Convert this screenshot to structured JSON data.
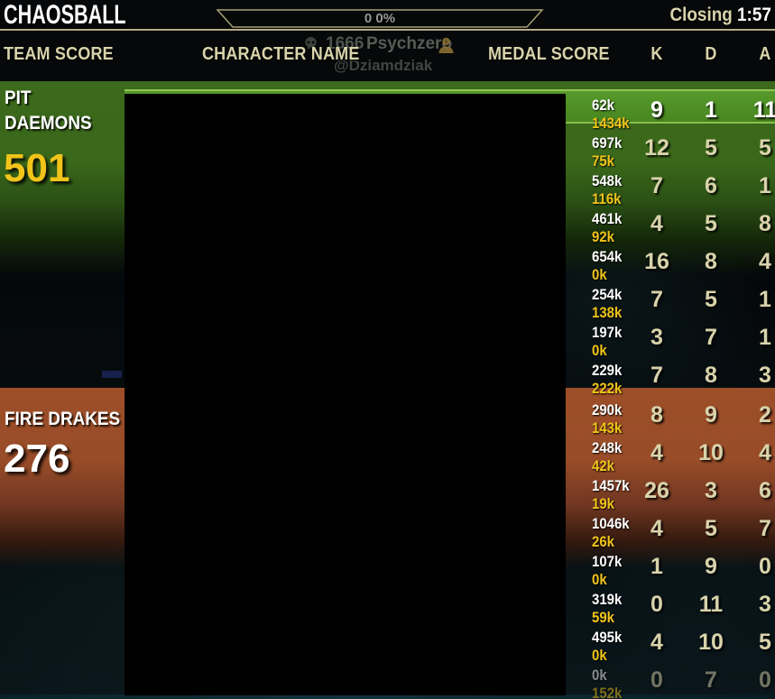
{
  "title_bar": {
    "game_mode": "CHAOSBALL",
    "closing_label": "Closing",
    "closing_time": "1:57",
    "capture_bar_text": "0 0%"
  },
  "background_overlay": {
    "score_value": "1666",
    "character_name": "Psychzero",
    "account_name": "@Dziamdziak"
  },
  "table_header": {
    "team_score": "TEAM SCORE",
    "character_name": "CHARACTER NAME",
    "medal_score": "MEDAL SCORE",
    "kills": "K",
    "deaths": "D",
    "assists": "A"
  },
  "icons": {
    "skull": "skull-icon",
    "rank": "player-rank-icon"
  },
  "colors": {
    "team1_green": "#3c691c",
    "team1_highlight": "#529426",
    "highlight_edge": "#92c553",
    "team2_orange": "#9c4f28",
    "medal_secondary_yellow": "#f0c419",
    "header_beige": "#d9d3ab",
    "team1_score_color": "#f0c419",
    "team2_score_color": "#ffffff"
  },
  "teams": [
    {
      "name": "PIT DAEMONS",
      "name_lines": [
        "PIT",
        "DAEMONS"
      ],
      "score": "501",
      "score_color": "#f0c419",
      "players": [
        {
          "medal_score": "62k",
          "medal_score_secondary": "1434k",
          "kills": "9",
          "deaths": "1",
          "assists": "11",
          "is_local_player": true
        },
        {
          "medal_score": "697k",
          "medal_score_secondary": "75k",
          "kills": "12",
          "deaths": "5",
          "assists": "5"
        },
        {
          "medal_score": "548k",
          "medal_score_secondary": "116k",
          "kills": "7",
          "deaths": "6",
          "assists": "1"
        },
        {
          "medal_score": "461k",
          "medal_score_secondary": "92k",
          "kills": "4",
          "deaths": "5",
          "assists": "8"
        },
        {
          "medal_score": "654k",
          "medal_score_secondary": "0k",
          "kills": "16",
          "deaths": "8",
          "assists": "4"
        },
        {
          "medal_score": "254k",
          "medal_score_secondary": "138k",
          "kills": "7",
          "deaths": "5",
          "assists": "1"
        },
        {
          "medal_score": "197k",
          "medal_score_secondary": "0k",
          "kills": "3",
          "deaths": "7",
          "assists": "1"
        },
        {
          "medal_score": "229k",
          "medal_score_secondary": "222k",
          "kills": "7",
          "deaths": "8",
          "assists": "3"
        }
      ]
    },
    {
      "name": "FIRE DRAKES",
      "name_lines": [
        "FIRE DRAKES"
      ],
      "score": "276",
      "score_color": "#ffffff",
      "players": [
        {
          "medal_score": "290k",
          "medal_score_secondary": "143k",
          "kills": "8",
          "deaths": "9",
          "assists": "2"
        },
        {
          "medal_score": "248k",
          "medal_score_secondary": "42k",
          "kills": "4",
          "deaths": "10",
          "assists": "4"
        },
        {
          "medal_score": "1457k",
          "medal_score_secondary": "19k",
          "kills": "26",
          "deaths": "3",
          "assists": "6"
        },
        {
          "medal_score": "1046k",
          "medal_score_secondary": "26k",
          "kills": "4",
          "deaths": "5",
          "assists": "7"
        },
        {
          "medal_score": "107k",
          "medal_score_secondary": "0k",
          "kills": "1",
          "deaths": "9",
          "assists": "0"
        },
        {
          "medal_score": "319k",
          "medal_score_secondary": "59k",
          "kills": "0",
          "deaths": "11",
          "assists": "3"
        },
        {
          "medal_score": "495k",
          "medal_score_secondary": "0k",
          "kills": "4",
          "deaths": "10",
          "assists": "5"
        },
        {
          "medal_score": "0k",
          "medal_score_secondary": "152k",
          "kills": "0",
          "deaths": "7",
          "assists": "0",
          "is_faded": true
        }
      ]
    }
  ]
}
